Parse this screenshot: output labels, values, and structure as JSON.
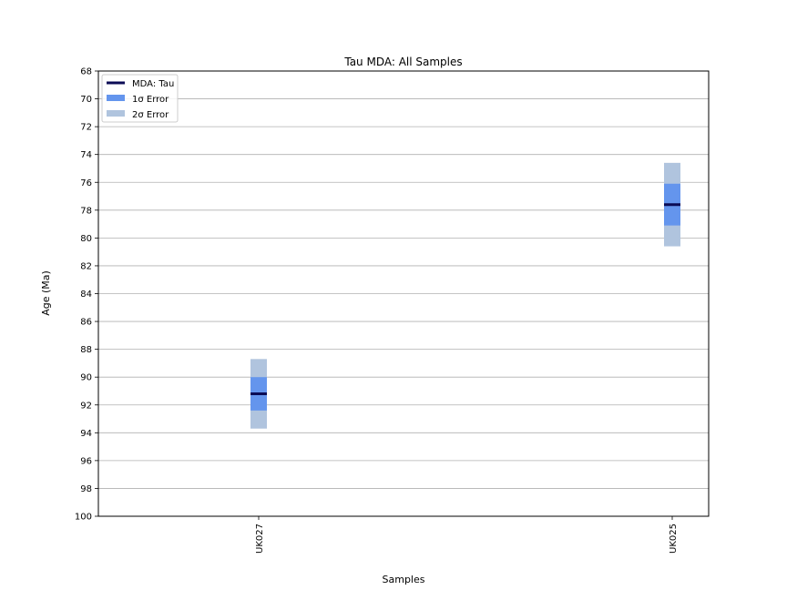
{
  "chart_data": {
    "type": "range",
    "title": "Tau MDA: All Samples",
    "xlabel": "Samples",
    "ylabel": "Age (Ma)",
    "ylim": [
      100,
      68
    ],
    "y_inverted": true,
    "y_ticks": [
      68,
      70,
      72,
      74,
      76,
      78,
      80,
      82,
      84,
      86,
      88,
      90,
      92,
      94,
      96,
      98,
      100
    ],
    "grid": "horizontal",
    "legend_position": "top-left",
    "categories": [
      "UK027",
      "UK025"
    ],
    "legend": [
      {
        "label": "MDA: Tau",
        "kind": "line",
        "color": "#0b0b55"
      },
      {
        "label": "1σ Error",
        "kind": "patch",
        "color": "#6495ed"
      },
      {
        "label": "2σ Error",
        "kind": "patch",
        "color": "#b0c4de"
      }
    ],
    "series": [
      {
        "sample": "UK027",
        "mda": 91.2,
        "one_sigma": [
          90.0,
          92.4
        ],
        "two_sigma": [
          88.7,
          93.7
        ]
      },
      {
        "sample": "UK025",
        "mda": 77.6,
        "one_sigma": [
          76.1,
          79.1
        ],
        "two_sigma": [
          74.6,
          80.6
        ]
      }
    ]
  }
}
